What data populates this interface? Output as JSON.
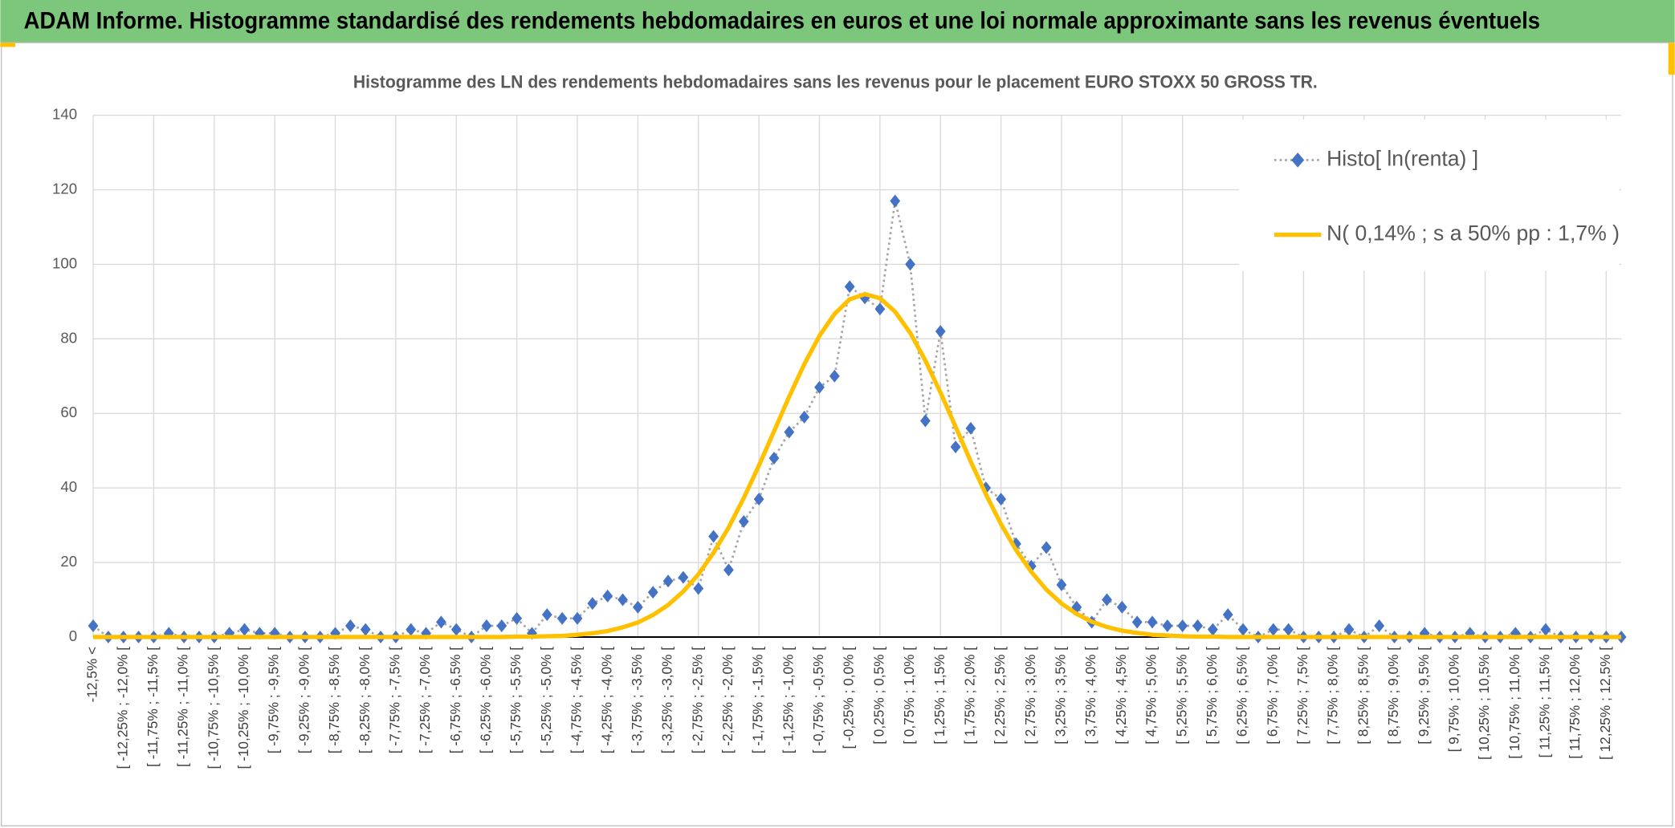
{
  "header": {
    "title": "ADAM Informe. Histogramme standardisé des rendements hebdomadaires en euros et une loi normale approximante sans les revenus éventuels"
  },
  "chart_data": {
    "type": "line",
    "title": "Histogramme des LN des rendements hebdomadaires sans les revenus pour le placement EURO STOXX 50 GROSS TR.",
    "categories": [
      "-12,5% <",
      null,
      "[ -12,25% ; -12,0% [",
      null,
      "[ -11,75% ; -11,5% [",
      null,
      "[ -11,25% ; -11,0% [",
      null,
      "[ -10,75% ; -10,5% [",
      null,
      "[ -10,25% ; -10,0% [",
      null,
      "[ -9,75% ; -9,5% [",
      null,
      "[ -9,25% ; -9,0% [",
      null,
      "[ -8,75% ; -8,5% [",
      null,
      "[ -8,25% ; -8,0% [",
      null,
      "[ -7,75% ; -7,5% [",
      null,
      "[ -7,25% ; -7,0% [",
      null,
      "[ -6,75% ; -6,5% [",
      null,
      "[ -6,25% ; -6,0% [",
      null,
      "[ -5,75% ; -5,5% [",
      null,
      "[ -5,25% ; -5,0% [",
      null,
      "[ -4,75% ; -4,5% [",
      null,
      "[ -4,25% ; -4,0% [",
      null,
      "[ -3,75% ; -3,5% [",
      null,
      "[ -3,25% ; -3,0% [",
      null,
      "[ -2,75% ; -2,5% [",
      null,
      "[ -2,25% ; -2,0% [",
      null,
      "[ -1,75% ; -1,5% [",
      null,
      "[ -1,25% ; -1,0% [",
      null,
      "[ -0,75% ; -0,5% [",
      null,
      "[ -0,25% ; 0,0% [",
      null,
      "[ 0,25% ; 0,5% [",
      null,
      "[ 0,75% ; 1,0% [",
      null,
      "[ 1,25% ; 1,5% [",
      null,
      "[ 1,75% ; 2,0% [",
      null,
      "[ 2,25% ; 2,5% [",
      null,
      "[ 2,75% ; 3,0% [",
      null,
      "[ 3,25% ; 3,5% [",
      null,
      "[ 3,75% ; 4,0% [",
      null,
      "[ 4,25% ; 4,5% [",
      null,
      "[ 4,75% ; 5,0% [",
      null,
      "[ 5,25% ; 5,5% [",
      null,
      "[ 5,75% ; 6,0% [",
      null,
      "[ 6,25% ; 6,5% [",
      null,
      "[ 6,75% ; 7,0% [",
      null,
      "[ 7,25% ; 7,5% [",
      null,
      "[ 7,75% ; 8,0% [",
      null,
      "[ 8,25% ; 8,5% [",
      null,
      "[ 8,75% ; 9,0% [",
      null,
      "[ 9,25% ; 9,5% [",
      null,
      "[ 9,75% ; 10,0% [",
      null,
      "[ 10,25% ; 10,5% [",
      null,
      "[ 10,75% ; 11,0% [",
      null,
      "[ 11,25% ; 11,5% [",
      null,
      "[ 11,75% ; 12,0% [",
      null,
      "[ 12,25% ; 12,5% [",
      null
    ],
    "series": [
      {
        "name": "Histo[ ln(renta) ]",
        "color": "#4472c4",
        "line_color": "#a5a5a5",
        "marker": "diamond",
        "line_style": "dotted",
        "values": [
          3,
          0,
          0,
          0,
          0,
          1,
          0,
          0,
          0,
          1,
          2,
          1,
          1,
          0,
          0,
          0,
          1,
          3,
          2,
          0,
          0,
          2,
          1,
          4,
          2,
          0,
          3,
          3,
          5,
          1,
          6,
          5,
          5,
          9,
          11,
          10,
          8,
          12,
          15,
          16,
          13,
          27,
          18,
          31,
          37,
          48,
          55,
          59,
          67,
          70,
          94,
          91,
          88,
          117,
          100,
          58,
          82,
          51,
          56,
          40,
          37,
          25,
          19,
          24,
          14,
          8,
          4,
          10,
          8,
          4,
          4,
          3,
          3,
          3,
          2,
          6,
          2,
          0,
          2,
          2,
          0,
          0,
          0,
          2,
          0,
          3,
          0,
          0,
          1,
          0,
          0,
          1,
          0,
          0,
          1,
          0,
          2,
          0,
          0,
          0,
          0,
          0
        ]
      },
      {
        "name": "N( 0,14% ; s a 50% pp : 1,7% )",
        "color": "#ffc000",
        "line_style": "solid",
        "values": [
          0,
          0,
          0,
          0,
          0,
          0,
          0,
          0,
          0,
          0,
          0,
          0,
          0,
          0,
          0,
          0,
          0,
          0,
          0,
          0,
          0,
          0,
          0,
          0,
          0,
          0,
          0,
          0,
          0.1,
          0.1,
          0.2,
          0.3,
          0.6,
          1,
          1.6,
          2.6,
          3.9,
          5.9,
          8.6,
          12.2,
          16.8,
          22.6,
          29.4,
          37.3,
          46,
          55.2,
          64.5,
          73.2,
          80.8,
          86.7,
          90.6,
          92,
          90.9,
          87.3,
          81.6,
          74.2,
          65.6,
          56.4,
          47.1,
          38.3,
          30.3,
          23.3,
          17.5,
          12.7,
          9,
          6.2,
          4.1,
          2.7,
          1.7,
          1.1,
          0.6,
          0.4,
          0.2,
          0.1,
          0.1,
          0,
          0,
          0,
          0,
          0,
          0,
          0,
          0,
          0,
          0,
          0,
          0,
          0,
          0,
          0,
          0,
          0,
          0,
          0,
          0,
          0,
          0,
          0,
          0,
          0,
          0,
          0
        ]
      }
    ],
    "ylim": [
      0,
      140
    ],
    "yticks": [
      0,
      20,
      40,
      60,
      80,
      100,
      120,
      140
    ],
    "grid": true,
    "legend": "top-right"
  }
}
